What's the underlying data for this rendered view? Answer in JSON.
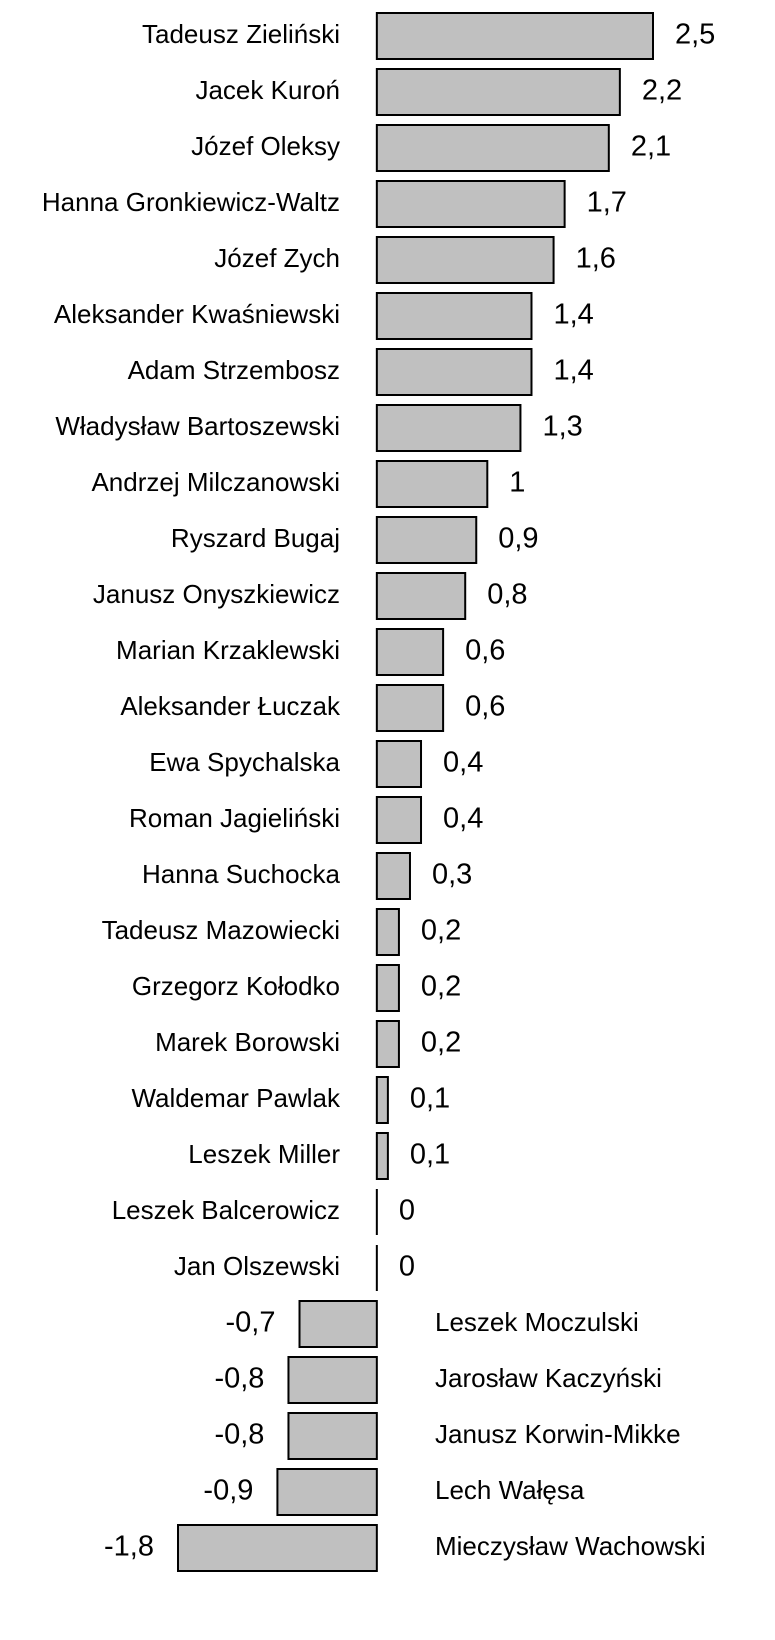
{
  "chart_data": {
    "type": "barh",
    "categories": [
      "Tadeusz Zieliński",
      "Jacek Kuroń",
      "Józef Oleksy",
      "Hanna Gronkiewicz-Waltz",
      "Józef Zych",
      "Aleksander Kwaśniewski",
      "Adam Strzembosz",
      "Władysław Bartoszewski",
      "Andrzej Milczanowski",
      "Ryszard Bugaj",
      "Janusz Onyszkiewicz",
      "Marian Krzaklewski",
      "Aleksander Łuczak",
      "Ewa Spychalska",
      "Roman Jagieliński",
      "Hanna Suchocka",
      "Tadeusz Mazowiecki",
      "Grzegorz Kołodko",
      "Marek Borowski",
      "Waldemar Pawlak",
      "Leszek Miller",
      "Leszek Balcerowicz",
      "Jan Olszewski",
      "Leszek Moczulski",
      "Jarosław Kaczyński",
      "Janusz Korwin-Mikke",
      "Lech Wałęsa",
      "Mieczysław Wachowski"
    ],
    "values": [
      2.5,
      2.2,
      2.1,
      1.7,
      1.6,
      1.4,
      1.4,
      1.3,
      1,
      0.9,
      0.8,
      0.6,
      0.6,
      0.4,
      0.4,
      0.3,
      0.2,
      0.2,
      0.2,
      0.1,
      0.1,
      0,
      0,
      -0.7,
      -0.8,
      -0.8,
      -0.9,
      -1.8
    ],
    "value_labels": [
      "2,5",
      "2,2",
      "2,1",
      "1,7",
      "1,6",
      "1,4",
      "1,4",
      "1,3",
      "1",
      "0,9",
      "0,8",
      "0,6",
      "0,6",
      "0,4",
      "0,4",
      "0,3",
      "0,2",
      "0,2",
      "0,2",
      "0,1",
      "0,1",
      "0",
      "0",
      "-0,7",
      "-0,8",
      "-0,8",
      "-0,9",
      "-1,8"
    ],
    "color": "#c0c0c0",
    "xlim": [
      -1.8,
      2.5
    ]
  }
}
